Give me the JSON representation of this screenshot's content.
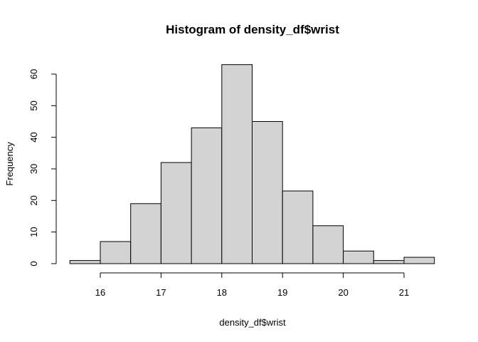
{
  "chart_data": {
    "type": "bar",
    "subtype": "histogram",
    "title": "Histogram of density_df$wrist",
    "xlabel": "density_df$wrist",
    "ylabel": "Frequency",
    "bins": [
      {
        "from": 15.5,
        "to": 16.0,
        "count": 1
      },
      {
        "from": 16.0,
        "to": 16.5,
        "count": 7
      },
      {
        "from": 16.5,
        "to": 17.0,
        "count": 19
      },
      {
        "from": 17.0,
        "to": 17.5,
        "count": 32
      },
      {
        "from": 17.5,
        "to": 18.0,
        "count": 43
      },
      {
        "from": 18.0,
        "to": 18.5,
        "count": 63
      },
      {
        "from": 18.5,
        "to": 19.0,
        "count": 45
      },
      {
        "from": 19.0,
        "to": 19.5,
        "count": 23
      },
      {
        "from": 19.5,
        "to": 20.0,
        "count": 12
      },
      {
        "from": 20.0,
        "to": 20.5,
        "count": 4
      },
      {
        "from": 20.5,
        "to": 21.0,
        "count": 1
      },
      {
        "from": 21.0,
        "to": 21.5,
        "count": 2
      }
    ],
    "xticks": [
      "16",
      "17",
      "18",
      "19",
      "20",
      "21"
    ],
    "yticks": [
      "0",
      "10",
      "20",
      "30",
      "40",
      "50",
      "60"
    ],
    "xlim": [
      15.5,
      21.5
    ],
    "ylim": [
      0,
      63
    ],
    "bar_color": "#d3d3d3",
    "border_color": "#000000",
    "grid": false,
    "legend": "none"
  }
}
